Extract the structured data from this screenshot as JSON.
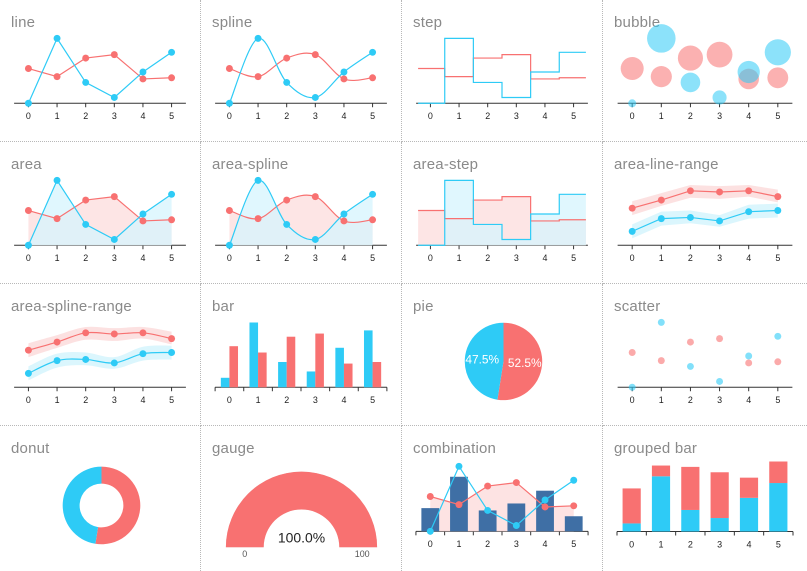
{
  "colors": {
    "red": "#f87171",
    "blue": "#2ecbf6",
    "navy": "#3f6fa5",
    "redFill": "#fcdcdc",
    "blueFill": "#d5f4fd",
    "grayFill": "#dcdde3"
  },
  "chart_data": [
    {
      "id": "line",
      "title": "line",
      "type": "line",
      "categories": [
        "0",
        "1",
        "2",
        "3",
        "4",
        "5"
      ],
      "series": [
        {
          "color": "red",
          "values": [
            150,
            115,
            195,
            210,
            105,
            110
          ]
        },
        {
          "color": "blue",
          "values": [
            0,
            280,
            90,
            25,
            135,
            220
          ]
        }
      ],
      "ylim": [
        0,
        300
      ]
    },
    {
      "id": "spline",
      "title": "spline",
      "type": "line",
      "smooth": true,
      "categories": [
        "0",
        "1",
        "2",
        "3",
        "4",
        "5"
      ],
      "series": [
        {
          "color": "red",
          "values": [
            150,
            115,
            195,
            210,
            105,
            110
          ]
        },
        {
          "color": "blue",
          "values": [
            0,
            280,
            90,
            25,
            135,
            220
          ]
        }
      ],
      "ylim": [
        0,
        300
      ]
    },
    {
      "id": "step",
      "title": "step",
      "type": "line",
      "step": true,
      "categories": [
        "0",
        "1",
        "2",
        "3",
        "4",
        "5"
      ],
      "series": [
        {
          "color": "red",
          "values": [
            150,
            115,
            195,
            210,
            105,
            110
          ]
        },
        {
          "color": "blue",
          "values": [
            0,
            280,
            90,
            25,
            135,
            220
          ]
        }
      ],
      "ylim": [
        0,
        300
      ]
    },
    {
      "id": "bubble",
      "title": "bubble",
      "type": "scatter",
      "bubble": true,
      "categories": [
        "0",
        "1",
        "2",
        "3",
        "4",
        "5"
      ],
      "series": [
        {
          "color": "red",
          "values": [
            150,
            115,
            195,
            210,
            105,
            110
          ]
        },
        {
          "color": "blue",
          "values": [
            0,
            280,
            90,
            25,
            135,
            220
          ]
        }
      ],
      "ylim": [
        0,
        300
      ]
    },
    {
      "id": "area",
      "title": "area",
      "type": "area",
      "categories": [
        "0",
        "1",
        "2",
        "3",
        "4",
        "5"
      ],
      "series": [
        {
          "color": "red",
          "values": [
            150,
            115,
            195,
            210,
            105,
            110
          ]
        },
        {
          "color": "blue",
          "values": [
            0,
            280,
            90,
            25,
            135,
            220
          ]
        }
      ],
      "ylim": [
        0,
        300
      ]
    },
    {
      "id": "area-spline",
      "title": "area-spline",
      "type": "area",
      "smooth": true,
      "categories": [
        "0",
        "1",
        "2",
        "3",
        "4",
        "5"
      ],
      "series": [
        {
          "color": "red",
          "values": [
            150,
            115,
            195,
            210,
            105,
            110
          ]
        },
        {
          "color": "blue",
          "values": [
            0,
            280,
            90,
            25,
            135,
            220
          ]
        }
      ],
      "ylim": [
        0,
        300
      ]
    },
    {
      "id": "area-step",
      "title": "area-step",
      "type": "area",
      "step": true,
      "categories": [
        "0",
        "1",
        "2",
        "3",
        "4",
        "5"
      ],
      "series": [
        {
          "color": "red",
          "values": [
            150,
            115,
            195,
            210,
            105,
            110
          ]
        },
        {
          "color": "blue",
          "values": [
            0,
            280,
            90,
            25,
            135,
            220
          ]
        }
      ],
      "ylim": [
        0,
        300
      ]
    },
    {
      "id": "area-line-range",
      "title": "area-line-range",
      "type": "area",
      "range": true,
      "categories": [
        "0",
        "1",
        "2",
        "3",
        "4",
        "5"
      ],
      "series": [
        {
          "color": "red",
          "mid": [
            160,
            195,
            235,
            230,
            235,
            210
          ],
          "low": [
            130,
            170,
            205,
            200,
            210,
            185
          ],
          "high": [
            190,
            225,
            260,
            255,
            260,
            240
          ]
        },
        {
          "color": "blue",
          "mid": [
            60,
            115,
            120,
            105,
            145,
            150
          ],
          "low": [
            30,
            85,
            95,
            80,
            115,
            120
          ],
          "high": [
            90,
            145,
            150,
            130,
            175,
            180
          ]
        }
      ],
      "ylim": [
        0,
        300
      ]
    },
    {
      "id": "area-spline-range",
      "title": "area-spline-range",
      "type": "area",
      "range": true,
      "smooth": true,
      "categories": [
        "0",
        "1",
        "2",
        "3",
        "4",
        "5"
      ],
      "series": [
        {
          "color": "red",
          "mid": [
            160,
            195,
            235,
            230,
            235,
            210
          ],
          "low": [
            130,
            170,
            205,
            200,
            210,
            185
          ],
          "high": [
            190,
            225,
            260,
            255,
            260,
            240
          ]
        },
        {
          "color": "blue",
          "mid": [
            60,
            115,
            120,
            105,
            145,
            150
          ],
          "low": [
            30,
            85,
            95,
            80,
            115,
            120
          ],
          "high": [
            90,
            145,
            150,
            130,
            175,
            180
          ]
        }
      ],
      "ylim": [
        0,
        300
      ]
    },
    {
      "id": "bar",
      "title": "bar",
      "type": "bar",
      "categories": [
        "0",
        "1",
        "2",
        "3",
        "4",
        "5"
      ],
      "series": [
        {
          "color": "blue",
          "values": [
            30,
            205,
            80,
            50,
            125,
            180
          ]
        },
        {
          "color": "red",
          "values": [
            130,
            110,
            160,
            170,
            75,
            80
          ]
        }
      ],
      "ylim": [
        0,
        220
      ]
    },
    {
      "id": "pie",
      "title": "pie",
      "type": "pie",
      "slices": [
        {
          "color": "red",
          "value": 52.5,
          "label": "52.5%"
        },
        {
          "color": "blue",
          "value": 47.5,
          "label": "47.5%"
        }
      ]
    },
    {
      "id": "scatter",
      "title": "scatter",
      "type": "scatter",
      "categories": [
        "0",
        "1",
        "2",
        "3",
        "4",
        "5"
      ],
      "series": [
        {
          "color": "red",
          "values": [
            150,
            115,
            195,
            210,
            105,
            110
          ]
        },
        {
          "color": "blue",
          "values": [
            0,
            280,
            90,
            25,
            135,
            220
          ]
        }
      ],
      "ylim": [
        0,
        300
      ]
    },
    {
      "id": "donut",
      "title": "donut",
      "type": "pie",
      "donut": true,
      "slices": [
        {
          "color": "red",
          "value": 52.5
        },
        {
          "color": "blue",
          "value": 47.5
        }
      ]
    },
    {
      "id": "gauge",
      "title": "gauge",
      "type": "gauge",
      "value": 100,
      "min": 0,
      "max": 100,
      "label": "100.0%",
      "minLabel": "0",
      "maxLabel": "100"
    },
    {
      "id": "combination",
      "title": "combination",
      "type": "combination",
      "categories": [
        "0",
        "1",
        "2",
        "3",
        "4",
        "5"
      ],
      "bars": [
        {
          "color": "navy",
          "values": [
            100,
            235,
            90,
            120,
            175,
            65
          ]
        }
      ],
      "area": {
        "color": "red",
        "values": [
          150,
          115,
          195,
          210,
          105,
          110
        ]
      },
      "line": {
        "color": "blue",
        "values": [
          0,
          280,
          90,
          25,
          135,
          220
        ]
      },
      "ylim": [
        0,
        300
      ]
    },
    {
      "id": "grouped-bar",
      "title": "grouped bar",
      "type": "bar",
      "stacked": true,
      "categories": [
        "0",
        "1",
        "2",
        "3",
        "4",
        "5"
      ],
      "series": [
        {
          "color": "blue",
          "values": [
            30,
            205,
            80,
            50,
            125,
            180
          ]
        },
        {
          "color": "red",
          "values": [
            130,
            40,
            160,
            170,
            75,
            80
          ]
        }
      ],
      "ylim": [
        0,
        260
      ]
    }
  ]
}
